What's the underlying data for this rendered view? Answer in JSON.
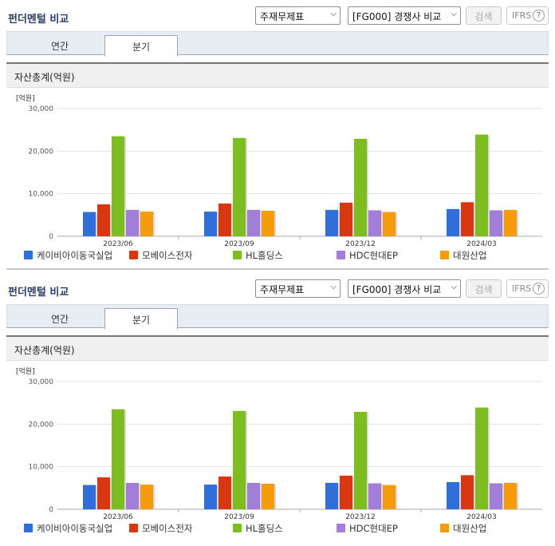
{
  "panels": [
    {
      "title": "펀더멘털 비교",
      "statement_select": "주재무제표",
      "compare_select": "[FG000] 경쟁사 비교",
      "search_label": "검색",
      "ifrs_label": "IFRS",
      "help_label": "?",
      "tabs": [
        {
          "label": "연간",
          "active": false
        },
        {
          "label": "분기",
          "active": true
        }
      ],
      "section_title": "자산총계(억원)",
      "chart_data": {
        "type": "bar",
        "ylabel": "[억원]",
        "ylim": [
          0,
          30000
        ],
        "yticks": [
          "0",
          "10,000",
          "20,000",
          "30,000"
        ],
        "categories": [
          "2023/06",
          "2023/09",
          "2023/12",
          "2024/03"
        ],
        "series": [
          {
            "name": "케이비아이동국실업",
            "color": "#2e6fdc",
            "values": [
              5700,
              5800,
              6200,
              6400
            ]
          },
          {
            "name": "모베이스전자",
            "color": "#d9370f",
            "values": [
              7500,
              7700,
              7900,
              8000
            ]
          },
          {
            "name": "HL홀딩스",
            "color": "#7ebd1f",
            "values": [
              23500,
              23100,
              22900,
              23900
            ]
          },
          {
            "name": "HDC현대EP",
            "color": "#a27ed8",
            "values": [
              6200,
              6200,
              6100,
              6100
            ]
          },
          {
            "name": "대원산업",
            "color": "#f59b0c",
            "values": [
              5800,
              6000,
              5700,
              6200
            ]
          }
        ]
      }
    },
    {
      "title": "펀더멘털 비교",
      "statement_select": "주재무제표",
      "compare_select": "[FG000] 경쟁사 비교",
      "search_label": "검색",
      "ifrs_label": "IFRS",
      "help_label": "?",
      "tabs": [
        {
          "label": "연간",
          "active": false
        },
        {
          "label": "분기",
          "active": true
        }
      ],
      "section_title": "자산총계(억원)",
      "chart_data": {
        "type": "bar",
        "ylabel": "[억원]",
        "ylim": [
          0,
          30000
        ],
        "yticks": [
          "0",
          "10,000",
          "20,000",
          "30,000"
        ],
        "categories": [
          "2023/06",
          "2023/09",
          "2023/12",
          "2024/03"
        ],
        "series": [
          {
            "name": "케이비아이동국실업",
            "color": "#2e6fdc",
            "values": [
              5700,
              5800,
              6200,
              6400
            ]
          },
          {
            "name": "모베이스전자",
            "color": "#d9370f",
            "values": [
              7500,
              7700,
              7900,
              8000
            ]
          },
          {
            "name": "HL홀딩스",
            "color": "#7ebd1f",
            "values": [
              23500,
              23100,
              22900,
              23900
            ]
          },
          {
            "name": "HDC현대EP",
            "color": "#a27ed8",
            "values": [
              6200,
              6200,
              6100,
              6100
            ]
          },
          {
            "name": "대원산업",
            "color": "#f59b0c",
            "values": [
              5800,
              6000,
              5700,
              6200
            ]
          }
        ]
      }
    }
  ]
}
